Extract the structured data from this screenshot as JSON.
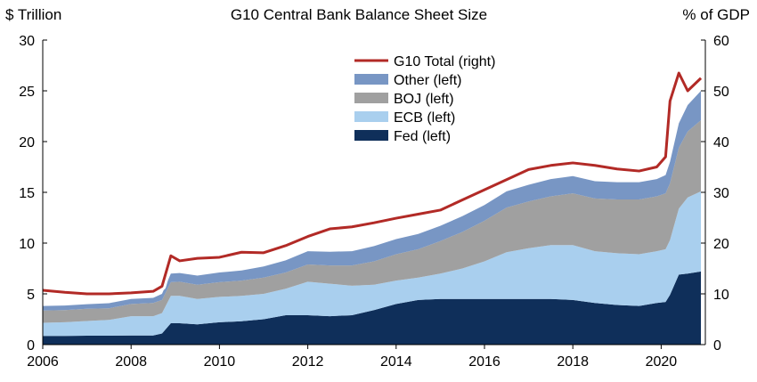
{
  "chart_data": {
    "type": "area",
    "title": "G10 Central Bank Balance Sheet Size",
    "ylabel_left": "$ Trillion",
    "ylabel_right": "% of GDP",
    "ylim_left": [
      0,
      30
    ],
    "ylim_right": [
      0,
      60
    ],
    "xlim": [
      2006,
      2021
    ],
    "x_ticks": [
      "2006",
      "2008",
      "2010",
      "2012",
      "2014",
      "2016",
      "2018",
      "2020"
    ],
    "y_ticks_left": [
      "0",
      "5",
      "10",
      "15",
      "20",
      "25",
      "30"
    ],
    "y_ticks_right": [
      "0",
      "10",
      "20",
      "30",
      "40",
      "50",
      "60"
    ],
    "grid": false,
    "legend_position": "top-center",
    "x": [
      2006,
      2006.5,
      2007,
      2007.5,
      2008,
      2008.5,
      2008.7,
      2008.9,
      2009.1,
      2009.5,
      2010,
      2010.5,
      2011,
      2011.5,
      2012,
      2012.5,
      2013,
      2013.5,
      2014,
      2014.5,
      2015,
      2015.5,
      2016,
      2016.5,
      2017,
      2017.5,
      2018,
      2018.5,
      2019,
      2019.5,
      2019.9,
      2020.1,
      2020.2,
      2020.4,
      2020.6,
      2020.9
    ],
    "series": [
      {
        "name": "Fed (left)",
        "axis": "left",
        "kind": "stack",
        "color": "#0f2f5a",
        "values": [
          0.85,
          0.85,
          0.88,
          0.88,
          0.9,
          0.9,
          1.1,
          2.1,
          2.1,
          2.0,
          2.2,
          2.3,
          2.5,
          2.9,
          2.9,
          2.8,
          2.9,
          3.4,
          4.0,
          4.4,
          4.5,
          4.5,
          4.5,
          4.5,
          4.5,
          4.5,
          4.4,
          4.1,
          3.9,
          3.8,
          4.1,
          4.2,
          4.9,
          6.9,
          7.0,
          7.2
        ]
      },
      {
        "name": "ECB (left)",
        "axis": "left",
        "kind": "stack",
        "color": "#a9cfee",
        "values": [
          1.3,
          1.35,
          1.45,
          1.55,
          1.9,
          1.9,
          2.0,
          2.7,
          2.7,
          2.5,
          2.5,
          2.5,
          2.5,
          2.6,
          3.3,
          3.2,
          2.9,
          2.5,
          2.3,
          2.2,
          2.5,
          3.0,
          3.7,
          4.6,
          5.0,
          5.3,
          5.4,
          5.1,
          5.1,
          5.1,
          5.1,
          5.2,
          5.4,
          6.5,
          7.5,
          7.9
        ]
      },
      {
        "name": "BOJ (left)",
        "axis": "left",
        "kind": "stack",
        "color": "#a0a0a0",
        "values": [
          1.2,
          1.2,
          1.2,
          1.15,
          1.2,
          1.3,
          1.3,
          1.35,
          1.4,
          1.4,
          1.45,
          1.5,
          1.6,
          1.6,
          1.7,
          1.8,
          2.0,
          2.3,
          2.6,
          2.8,
          3.2,
          3.6,
          4.0,
          4.4,
          4.6,
          4.8,
          5.1,
          5.2,
          5.3,
          5.4,
          5.4,
          5.5,
          5.6,
          6.0,
          6.5,
          7.0
        ]
      },
      {
        "name": "Other (left)",
        "axis": "left",
        "kind": "stack",
        "color": "#7896c4",
        "values": [
          0.45,
          0.45,
          0.45,
          0.5,
          0.5,
          0.5,
          0.6,
          0.85,
          0.85,
          0.9,
          0.95,
          1.0,
          1.1,
          1.2,
          1.3,
          1.35,
          1.4,
          1.5,
          1.5,
          1.5,
          1.5,
          1.55,
          1.55,
          1.6,
          1.65,
          1.7,
          1.7,
          1.7,
          1.7,
          1.7,
          1.7,
          1.8,
          2.1,
          2.4,
          2.6,
          2.9
        ]
      },
      {
        "name": "G10 Total (right)",
        "axis": "right",
        "kind": "line",
        "color": "#b22a26",
        "values": [
          10.7,
          10.3,
          10.0,
          10.0,
          10.2,
          10.5,
          11.5,
          17.5,
          16.5,
          17.0,
          17.2,
          18.2,
          18.1,
          19.5,
          21.3,
          22.8,
          23.2,
          24.0,
          24.9,
          25.7,
          26.5,
          28.5,
          30.5,
          32.5,
          34.5,
          35.3,
          35.8,
          35.3,
          34.6,
          34.2,
          35.0,
          37.0,
          48.0,
          53.5,
          50.0,
          52.5
        ]
      }
    ],
    "legend_order": [
      "G10 Total (right)",
      "Other (left)",
      "BOJ (left)",
      "ECB (left)",
      "Fed (left)"
    ]
  }
}
